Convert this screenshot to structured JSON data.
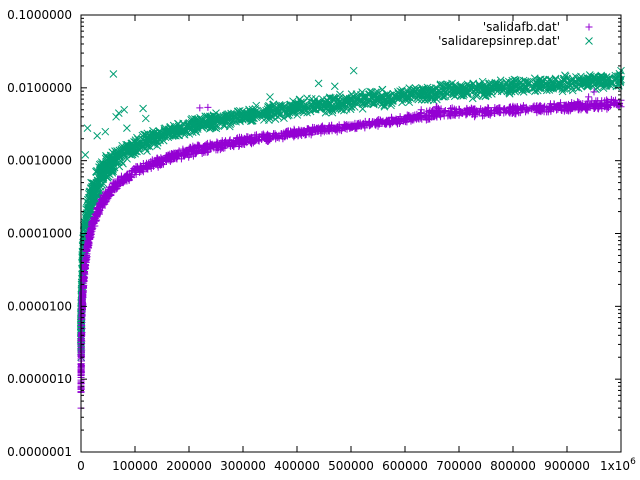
{
  "chart_data": {
    "type": "scatter",
    "title": "",
    "xlabel": "",
    "ylabel": "",
    "x_scale": "linear",
    "y_scale": "log",
    "xlim": [
      0,
      1000000
    ],
    "ylim": [
      1e-07,
      0.1
    ],
    "x_ticks": [
      0,
      100000,
      200000,
      300000,
      400000,
      500000,
      600000,
      700000,
      800000,
      900000,
      1000000
    ],
    "x_tick_labels": [
      "0",
      "100000",
      "200000",
      "300000",
      "400000",
      "500000",
      "600000",
      "700000",
      "800000",
      "900000",
      "1x10"
    ],
    "x_tick_exponent": "6",
    "y_ticks": [
      1e-07,
      1e-06,
      1e-05,
      0.0001,
      0.001,
      0.01,
      0.1
    ],
    "y_tick_labels": [
      "0.0000001",
      "0.0000010",
      "0.0000100",
      "0.0001000",
      "0.0010000",
      "0.0100000",
      "0.1000000"
    ],
    "grid": false,
    "legend_position": "top-right",
    "series": [
      {
        "name": "'salidafb.dat'",
        "color": "#9400d3",
        "marker": "plus",
        "points": [
          [
            100,
            4e-07
          ],
          [
            300,
            8e-07
          ],
          [
            500,
            1.5e-06
          ],
          [
            800,
            2.5e-06
          ],
          [
            1000,
            4e-06
          ],
          [
            1500,
            6e-06
          ],
          [
            2000,
            9e-06
          ],
          [
            3000,
            1.4e-05
          ],
          [
            4000,
            1.9e-05
          ],
          [
            5000,
            2.5e-05
          ],
          [
            7000,
            3.5e-05
          ],
          [
            10000,
            5e-05
          ],
          [
            13000,
            7e-05
          ],
          [
            16000,
            9e-05
          ],
          [
            20000,
            0.00012
          ],
          [
            25000,
            0.00016
          ],
          [
            30000,
            0.0002
          ],
          [
            35000,
            0.00024
          ],
          [
            40000,
            0.00028
          ],
          [
            50000,
            0.00035
          ],
          [
            60000,
            0.00042
          ],
          [
            70000,
            0.0005
          ],
          [
            80000,
            0.00058
          ],
          [
            90000,
            0.00065
          ],
          [
            100000,
            0.00072
          ],
          [
            120000,
            0.00085
          ],
          [
            140000,
            0.00098
          ],
          [
            160000,
            0.0011
          ],
          [
            180000,
            0.00122
          ],
          [
            200000,
            0.00135
          ],
          [
            230000,
            0.0015
          ],
          [
            260000,
            0.00165
          ],
          [
            300000,
            0.0019
          ],
          [
            350000,
            0.0022
          ],
          [
            400000,
            0.0025
          ],
          [
            450000,
            0.0028
          ],
          [
            500000,
            0.0031
          ],
          [
            550000,
            0.0034
          ],
          [
            600000,
            0.0038
          ],
          [
            640000,
            0.0042
          ],
          [
            660000,
            0.0045
          ],
          [
            700000,
            0.0042
          ],
          [
            750000,
            0.0044
          ],
          [
            800000,
            0.0046
          ],
          [
            850000,
            0.0048
          ],
          [
            900000,
            0.005
          ],
          [
            950000,
            0.0052
          ],
          [
            1000000,
            0.0055
          ]
        ],
        "band_lower": [
          [
            0,
            3e-07
          ],
          [
            2000,
            6e-06
          ],
          [
            5000,
            1.8e-05
          ],
          [
            10000,
            4e-05
          ],
          [
            20000,
            0.0001
          ],
          [
            40000,
            0.00022
          ],
          [
            60000,
            0.00035
          ],
          [
            80000,
            0.00048
          ],
          [
            100000,
            0.0006
          ],
          [
            150000,
            0.00085
          ],
          [
            200000,
            0.0011
          ],
          [
            300000,
            0.0016
          ],
          [
            400000,
            0.0021
          ],
          [
            500000,
            0.0026
          ],
          [
            600000,
            0.0032
          ],
          [
            650000,
            0.0035
          ],
          [
            655000,
            0.0038
          ],
          [
            700000,
            0.0038
          ],
          [
            800000,
            0.0042
          ],
          [
            900000,
            0.0046
          ],
          [
            1000000,
            0.005
          ]
        ],
        "band_upper": [
          [
            0,
            4e-06
          ],
          [
            2000,
            1.4e-05
          ],
          [
            5000,
            3.5e-05
          ],
          [
            10000,
            7e-05
          ],
          [
            20000,
            0.00016
          ],
          [
            40000,
            0.00035
          ],
          [
            60000,
            0.00052
          ],
          [
            80000,
            0.00068
          ],
          [
            100000,
            0.00085
          ],
          [
            150000,
            0.0012
          ],
          [
            200000,
            0.0016
          ],
          [
            300000,
            0.0022
          ],
          [
            400000,
            0.0028
          ],
          [
            500000,
            0.0034
          ],
          [
            600000,
            0.0042
          ],
          [
            650000,
            0.0052
          ],
          [
            660000,
            0.0058
          ],
          [
            700000,
            0.0055
          ],
          [
            800000,
            0.0058
          ],
          [
            900000,
            0.0065
          ],
          [
            1000000,
            0.0075
          ]
        ],
        "outliers": [
          [
            220000,
            0.0053
          ],
          [
            235000,
            0.0054
          ],
          [
            950000,
            0.0088
          ],
          [
            940000,
            0.0075
          ],
          [
            630000,
            0.005
          ]
        ]
      },
      {
        "name": "'salidarepsinrep.dat'",
        "color": "#009e73",
        "marker": "cross",
        "points": [
          [
            200,
            2e-06
          ],
          [
            500,
            6e-06
          ],
          [
            1000,
            1e-05
          ],
          [
            2000,
            2e-05
          ],
          [
            3000,
            4e-05
          ],
          [
            5000,
            6e-05
          ],
          [
            7000,
            9e-05
          ],
          [
            10000,
            0.00013
          ],
          [
            13000,
            0.00018
          ],
          [
            16000,
            0.00023
          ],
          [
            20000,
            0.0003
          ],
          [
            25000,
            0.00038
          ],
          [
            30000,
            0.00046
          ],
          [
            40000,
            0.0006
          ],
          [
            50000,
            0.00075
          ],
          [
            60000,
            0.0009
          ],
          [
            70000,
            0.00105
          ],
          [
            80000,
            0.0012
          ],
          [
            90000,
            0.00135
          ],
          [
            100000,
            0.0015
          ],
          [
            120000,
            0.0018
          ],
          [
            140000,
            0.0021
          ],
          [
            160000,
            0.0024
          ],
          [
            180000,
            0.0027
          ],
          [
            200000,
            0.003
          ],
          [
            250000,
            0.0036
          ],
          [
            300000,
            0.0043
          ],
          [
            350000,
            0.005
          ],
          [
            400000,
            0.0057
          ],
          [
            450000,
            0.0062
          ],
          [
            500000,
            0.0068
          ],
          [
            550000,
            0.0074
          ],
          [
            600000,
            0.008
          ],
          [
            650000,
            0.0086
          ],
          [
            700000,
            0.0092
          ],
          [
            750000,
            0.0098
          ],
          [
            800000,
            0.0104
          ],
          [
            850000,
            0.011
          ],
          [
            900000,
            0.0116
          ],
          [
            950000,
            0.0122
          ],
          [
            1000000,
            0.013
          ]
        ],
        "band_lower": [
          [
            0,
            2e-06
          ],
          [
            2000,
            1e-05
          ],
          [
            5000,
            3e-05
          ],
          [
            10000,
            7e-05
          ],
          [
            20000,
            0.00018
          ],
          [
            40000,
            0.0004
          ],
          [
            60000,
            0.00065
          ],
          [
            80000,
            0.0009
          ],
          [
            100000,
            0.0011
          ],
          [
            150000,
            0.0017
          ],
          [
            200000,
            0.0022
          ],
          [
            300000,
            0.0031
          ],
          [
            400000,
            0.0039
          ],
          [
            500000,
            0.0048
          ],
          [
            600000,
            0.0058
          ],
          [
            700000,
            0.0068
          ],
          [
            800000,
            0.0078
          ],
          [
            900000,
            0.0088
          ],
          [
            1000000,
            0.0095
          ]
        ],
        "band_upper": [
          [
            0,
            1e-05
          ],
          [
            2000,
            6e-05
          ],
          [
            5000,
            0.00015
          ],
          [
            10000,
            0.0003
          ],
          [
            20000,
            0.0006
          ],
          [
            40000,
            0.0011
          ],
          [
            60000,
            0.0015
          ],
          [
            80000,
            0.0019
          ],
          [
            100000,
            0.0022
          ],
          [
            150000,
            0.003
          ],
          [
            200000,
            0.0038
          ],
          [
            300000,
            0.0055
          ],
          [
            400000,
            0.0072
          ],
          [
            500000,
            0.0088
          ],
          [
            600000,
            0.0105
          ],
          [
            700000,
            0.0122
          ],
          [
            800000,
            0.0138
          ],
          [
            900000,
            0.0152
          ],
          [
            1000000,
            0.0165
          ]
        ],
        "outliers": [
          [
            60000,
            0.0155
          ],
          [
            115000,
            0.0052
          ],
          [
            120000,
            0.0038
          ],
          [
            85000,
            0.0028
          ],
          [
            70000,
            0.0045
          ],
          [
            65000,
            0.004
          ],
          [
            505000,
            0.0172
          ],
          [
            440000,
            0.0115
          ],
          [
            80000,
            0.005
          ],
          [
            12000,
            0.0028
          ],
          [
            8000,
            0.0012
          ],
          [
            45000,
            0.0025
          ],
          [
            30000,
            0.0022
          ],
          [
            250000,
            0.0045
          ],
          [
            350000,
            0.0075
          ],
          [
            470000,
            0.0105
          ],
          [
            1000000,
            0.0172
          ]
        ]
      }
    ]
  }
}
